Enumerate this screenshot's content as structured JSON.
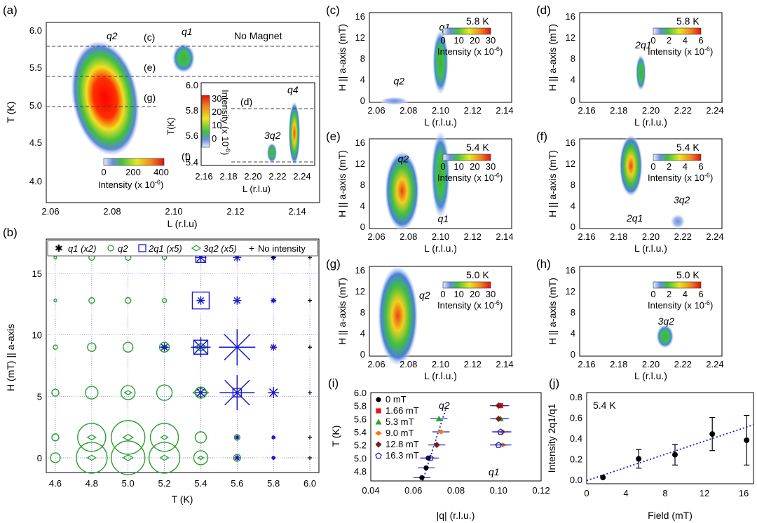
{
  "panels": {
    "a": {
      "label": "(a)",
      "title": "No Magnet",
      "xlabel": "L (r.l.u)",
      "ylabel": "T (K)",
      "xticks": [
        "2.06",
        "2.08",
        "2.10",
        "2.12",
        "2.14"
      ],
      "yticks": [
        "4.0",
        "4.5",
        "5.0",
        "5.5",
        "6.0"
      ],
      "peaks": [
        "q2",
        "q1"
      ],
      "cuts": [
        "(c)",
        "(e)",
        "(g)"
      ],
      "colorbar": {
        "label": "Intensity (x 10",
        "exp": "-6",
        "ticks": [
          "0",
          "200",
          "400"
        ]
      },
      "inset": {
        "xlabel": "L (r.l.u)",
        "ylabel": "T(K)",
        "xticks": [
          "2.16",
          "2.18",
          "2.20",
          "2.22",
          "2.24"
        ],
        "yticks": [
          "5.4",
          "5.6",
          "5.8",
          "6.0"
        ],
        "peaks": [
          "3q2",
          "q4"
        ],
        "cuts": [
          "(d)",
          "(f)"
        ],
        "colorbar": {
          "label": "Intensity (x 10",
          "exp": "-6",
          "ticks": [
            "30",
            "20",
            "10",
            "0"
          ]
        }
      }
    },
    "b": {
      "label": "(b)",
      "xlabel": "T (K)",
      "ylabel": "H (mT) || a-axis",
      "xticks": [
        "4.6",
        "4.8",
        "5.0",
        "5.2",
        "5.4",
        "5.6",
        "5.8",
        "6.0"
      ],
      "yticks": [
        "0",
        "5",
        "10",
        "15"
      ],
      "legend": [
        "q1 (x2)",
        "q2",
        "2q1 (x5)",
        "3q2 (x5)",
        "No intensity"
      ]
    },
    "c": {
      "label": "(c)",
      "temp": "5.8 K",
      "xticks": [
        "2.06",
        "2.08",
        "2.10",
        "2.12",
        "2.14"
      ],
      "peaks": [
        "q2",
        "q1"
      ],
      "cbticks": [
        "0",
        "10",
        "20",
        "30"
      ]
    },
    "d": {
      "label": "(d)",
      "temp": "5.8 K",
      "xticks": [
        "2.16",
        "2.18",
        "2.20",
        "2.22",
        "2.24"
      ],
      "peaks": [
        "2q1"
      ],
      "cbticks": [
        "0",
        "2",
        "4",
        "6"
      ]
    },
    "e": {
      "label": "(e)",
      "temp": "5.4 K",
      "xticks": [
        "2.06",
        "2.08",
        "2.10",
        "2.12",
        "2.14"
      ],
      "peaks": [
        "q2",
        "q1"
      ],
      "cbticks": [
        "0",
        "10",
        "20",
        "30"
      ]
    },
    "f": {
      "label": "(f)",
      "temp": "5.4 K",
      "xticks": [
        "2.16",
        "2.18",
        "2.20",
        "2.22",
        "2.24"
      ],
      "peaks": [
        "2q1",
        "3q2"
      ],
      "cbticks": [
        "0",
        "2",
        "4",
        "6"
      ]
    },
    "g": {
      "label": "(g)",
      "temp": "5.0 K",
      "xticks": [
        "2.06",
        "2.08",
        "2.10",
        "2.12",
        "2.14"
      ],
      "peaks": [
        "q2"
      ],
      "cbticks": [
        "0",
        "10",
        "20",
        "30"
      ]
    },
    "h": {
      "label": "(h)",
      "temp": "5.0 K",
      "xticks": [
        "2.16",
        "2.18",
        "2.20",
        "2.22",
        "2.24"
      ],
      "peaks": [
        "3q2"
      ],
      "cbticks": [
        "0",
        "2",
        "4",
        "6"
      ]
    },
    "map_common": {
      "xlabel": "L (r.l.u.)",
      "ylabel": "H || a-axis (mT)",
      "yticks": [
        "0",
        "4",
        "8",
        "12",
        "16"
      ],
      "cblabel": "Intensity (x 10",
      "cbexp": "-6"
    },
    "i": {
      "label": "(i)",
      "xlabel": "|q| (r.l.u.)",
      "ylabel": "T (K)",
      "xticks": [
        "0.04",
        "0.06",
        "0.08",
        "0.10",
        "0.12"
      ],
      "yticks": [
        "4.8",
        "5.0",
        "5.2",
        "5.4",
        "5.6",
        "5.8",
        "6.0"
      ],
      "legend": [
        "0 mT",
        "1.66 mT",
        "5.3 mT",
        "9.0 mT",
        "12.8 mT",
        "16.3 mT"
      ],
      "peaks": [
        "q2",
        "q1"
      ]
    },
    "j": {
      "label": "(j)",
      "annotation": "5.4 K",
      "xlabel": "Field (mT)",
      "ylabel": "Intensity 2q1/q1",
      "xticks": [
        "0",
        "4",
        "8",
        "12",
        "16"
      ],
      "yticks": [
        "0.0",
        "0.2",
        "0.4",
        "0.6",
        "0.8"
      ]
    }
  },
  "colors": {
    "accent_blue": "#1a1acc",
    "green": "#2ca02c"
  },
  "chart_data": [
    {
      "panel": "j",
      "type": "scatter",
      "title": "5.4 K",
      "xlabel": "Field (mT)",
      "ylabel": "Intensity 2q1/q1",
      "xlim": [
        0,
        17
      ],
      "ylim": [
        0,
        0.8
      ],
      "x": [
        1.66,
        5.3,
        9.0,
        12.8,
        16.3
      ],
      "y": [
        0.02,
        0.2,
        0.24,
        0.44,
        0.38
      ],
      "yerr": [
        0.0,
        0.09,
        0.1,
        0.16,
        0.24
      ],
      "fit_line": {
        "x": [
          0,
          17
        ],
        "y": [
          -0.01,
          0.53
        ]
      }
    },
    {
      "panel": "i",
      "type": "scatter",
      "xlabel": "|q| (r.l.u.)",
      "ylabel": "T (K)",
      "xlim": [
        0.04,
        0.12
      ],
      "ylim": [
        4.65,
        6.0
      ],
      "series": [
        {
          "name": "0 mT",
          "q2": [
            [
              0.064,
              4.7
            ],
            [
              0.066,
              4.85
            ],
            [
              0.067,
              5.0
            ]
          ],
          "q1": []
        },
        {
          "name": "1.66 mT",
          "q2": [],
          "q1": [
            [
              0.101,
              5.8
            ]
          ]
        },
        {
          "name": "5.3 mT",
          "q2": [
            [
              0.072,
              5.6
            ]
          ],
          "q1": [
            [
              0.101,
              5.6
            ]
          ]
        },
        {
          "name": "9.0 mT",
          "q2": [
            [
              0.073,
              5.4
            ]
          ],
          "q1": [
            [
              0.102,
              5.4
            ],
            [
              0.102,
              5.2
            ]
          ]
        },
        {
          "name": "12.8 mT",
          "q2": [
            [
              0.071,
              5.2
            ]
          ],
          "q1": [
            [
              0.1,
              5.8
            ],
            [
              0.1,
              5.6
            ]
          ]
        },
        {
          "name": "16.3 mT",
          "q2": [
            [
              0.068,
              5.0
            ]
          ],
          "q1": [
            [
              0.101,
              5.4
            ],
            [
              0.1,
              5.2
            ]
          ]
        }
      ]
    },
    {
      "panel": "b",
      "type": "scatter",
      "xlabel": "T (K)",
      "ylabel": "H (mT) || a-axis",
      "xlim": [
        4.55,
        6.05
      ],
      "ylim": [
        -1.2,
        17.8
      ],
      "fields": [
        0,
        1.66,
        5.3,
        9.0,
        12.8,
        16.3
      ],
      "q2": [
        [
          4.6,
          0,
          7
        ],
        [
          4.8,
          0,
          22
        ],
        [
          5.0,
          0,
          24
        ],
        [
          5.2,
          0,
          22
        ],
        [
          5.4,
          0,
          10
        ],
        [
          5.6,
          0,
          5
        ],
        [
          4.6,
          1.66,
          5
        ],
        [
          4.8,
          1.66,
          20
        ],
        [
          5.0,
          1.66,
          24
        ],
        [
          5.2,
          1.66,
          20
        ],
        [
          5.4,
          1.66,
          8
        ],
        [
          5.6,
          1.66,
          4
        ],
        [
          4.6,
          5.3,
          5
        ],
        [
          4.8,
          5.3,
          9
        ],
        [
          5.0,
          5.3,
          10
        ],
        [
          5.2,
          5.3,
          11
        ],
        [
          5.4,
          5.3,
          8
        ],
        [
          4.6,
          9.0,
          3
        ],
        [
          4.8,
          9.0,
          6
        ],
        [
          5.0,
          9.0,
          7
        ],
        [
          5.2,
          9.0,
          7
        ],
        [
          5.4,
          9.0,
          5
        ],
        [
          4.6,
          12.8,
          2
        ],
        [
          4.8,
          12.8,
          4
        ],
        [
          5.0,
          12.8,
          4
        ],
        [
          5.2,
          12.8,
          3
        ],
        [
          4.6,
          16.3,
          2
        ],
        [
          4.8,
          16.3,
          4
        ],
        [
          5.0,
          16.3,
          4
        ],
        [
          5.2,
          16.3,
          3
        ]
      ],
      "q1": [
        [
          5.4,
          5.3,
          8
        ],
        [
          5.6,
          5.3,
          25
        ],
        [
          5.8,
          5.3,
          8
        ],
        [
          5.4,
          9.0,
          14
        ],
        [
          5.6,
          9.0,
          26
        ],
        [
          5.8,
          9.0,
          5
        ],
        [
          5.4,
          12.8,
          6
        ],
        [
          5.6,
          12.8,
          6
        ],
        [
          5.8,
          12.8,
          4
        ],
        [
          5.4,
          16.3,
          8
        ],
        [
          5.6,
          16.3,
          6
        ],
        [
          5.8,
          16.3,
          4
        ],
        [
          5.2,
          9.0,
          6
        ],
        [
          5.6,
          0,
          4
        ],
        [
          5.8,
          0,
          3
        ],
        [
          5.8,
          1.66,
          3
        ],
        [
          5.6,
          1.66,
          3
        ]
      ],
      "twoq1": [
        [
          5.4,
          12.8,
          12
        ],
        [
          5.4,
          16.3,
          7
        ],
        [
          5.4,
          9.0,
          10
        ],
        [
          5.6,
          5.3,
          6
        ]
      ],
      "threeq2": [
        [
          5.2,
          0,
          6
        ],
        [
          5.0,
          0,
          7
        ],
        [
          4.8,
          0,
          6
        ],
        [
          5.0,
          1.66,
          7
        ],
        [
          4.8,
          1.66,
          6
        ],
        [
          5.2,
          1.66,
          5
        ],
        [
          5.0,
          5.3,
          5
        ],
        [
          5.4,
          5.3,
          11
        ],
        [
          5.4,
          9.0,
          9
        ],
        [
          5.2,
          9.0,
          5
        ],
        [
          5.4,
          0,
          4
        ]
      ],
      "none": [
        [
          5.8,
          16.3
        ],
        [
          6.0,
          16.3
        ],
        [
          6.0,
          12.8
        ],
        [
          6.0,
          9.0
        ],
        [
          6.0,
          5.3
        ],
        [
          6.0,
          1.66
        ],
        [
          6.0,
          0
        ]
      ]
    }
  ]
}
